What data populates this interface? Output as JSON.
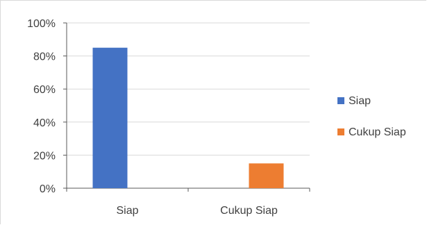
{
  "chart_data": {
    "type": "bar",
    "categories": [
      "Siap",
      "Cukup Siap"
    ],
    "series": [
      {
        "name": "Siap",
        "color": "#4472C4",
        "values": [
          85,
          null
        ]
      },
      {
        "name": "Cukup Siap",
        "color": "#ED7D31",
        "values": [
          null,
          15
        ]
      }
    ],
    "y_ticks": [
      "0%",
      "20%",
      "40%",
      "60%",
      "80%",
      "100%"
    ],
    "ylim": [
      0,
      100
    ],
    "grid": true,
    "legend_position": "right",
    "title": "",
    "xlabel": "",
    "ylabel": ""
  }
}
